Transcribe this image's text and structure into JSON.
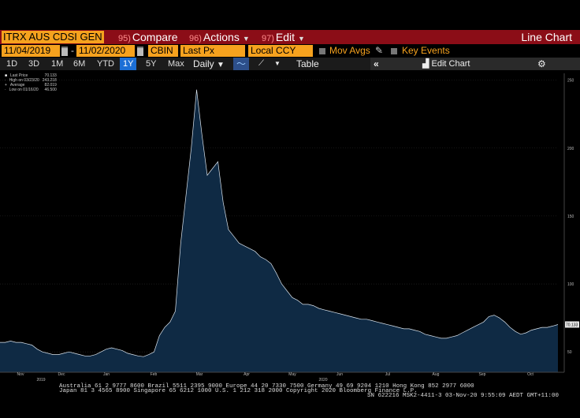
{
  "toolbar": {
    "ticker": "ITRX AUS CDSI GEN",
    "compare": {
      "num": "95)",
      "label": "Compare"
    },
    "actions": {
      "num": "96)",
      "label": "Actions"
    },
    "edit": {
      "num": "97)",
      "label": "Edit"
    },
    "chart_type": "Line Chart"
  },
  "range_row": {
    "start_date": "11/04/2019",
    "end_date": "11/02/2020",
    "source": "CBIN",
    "field": "Last Px",
    "currency": "Local CCY",
    "mov_avgs": "Mov Avgs",
    "key_events": "Key Events"
  },
  "period_row": {
    "periods": [
      "1D",
      "3D",
      "1M",
      "6M",
      "YTD",
      "1Y",
      "5Y",
      "Max"
    ],
    "active_period": "1Y",
    "frequency": "Daily",
    "table": "Table",
    "edit_chart": "Edit Chart"
  },
  "legend": [
    {
      "label": "Last Price",
      "value": "70.133"
    },
    {
      "label": "High on 03/23/20",
      "value": "243.218"
    },
    {
      "label": "Average",
      "value": "82.019"
    },
    {
      "label": "Low on 01/16/20",
      "value": "46.500"
    }
  ],
  "last_value_tag": "70.133",
  "chart_data": {
    "type": "area",
    "title": "",
    "xlabel": "",
    "ylabel": "",
    "ylim": [
      35,
      255
    ],
    "y_ticks": [
      50,
      100,
      150,
      200,
      250
    ],
    "x_month_labels": [
      "Nov",
      "Dec",
      "Jan",
      "Feb",
      "Mar",
      "Apr",
      "May",
      "Jun",
      "Jul",
      "Aug",
      "Sep",
      "Oct"
    ],
    "x_year_labels": [
      "2019",
      "2020"
    ],
    "series": [
      {
        "values": [
          57,
          57,
          58,
          57,
          57,
          56,
          55,
          52,
          50,
          49,
          48,
          48,
          49,
          50,
          49,
          48,
          47,
          47,
          48,
          50,
          52,
          53,
          52,
          51,
          49,
          48,
          47,
          46.5,
          48,
          50,
          62,
          68,
          72,
          80,
          130,
          165,
          200,
          243,
          210,
          180,
          185,
          190,
          160,
          140,
          135,
          130,
          128,
          126,
          124,
          120,
          118,
          115,
          108,
          100,
          95,
          90,
          88,
          85,
          85,
          84,
          82,
          81,
          80,
          79,
          78,
          77,
          76,
          75,
          74,
          74,
          73,
          72,
          71,
          70,
          69,
          68,
          67,
          67,
          66,
          65,
          63,
          62,
          61,
          60,
          60,
          61,
          62,
          64,
          66,
          68,
          70,
          72,
          76,
          77,
          75,
          72,
          68,
          65,
          63,
          64,
          66,
          67,
          68,
          68,
          69,
          70.133
        ],
        "color": "#0f2a44",
        "line_color": "#dce6f0"
      }
    ]
  },
  "footer": {
    "line1": "Australia 61 2 9777 8600  Brazil 5511 2395 9000  Europe 44 20 7330 7500  Germany 49 69 9204 1210  Hong Kong 852 2977 6000",
    "line2": "Japan 81 3 4565 8900        Singapore 65 6212 1000        U.S. 1 212 318 2000        Copyright 2020 Bloomberg Finance L.P.",
    "line3": "SN 622216 MSK2-4411-3 03-Nov-20  9:55:09 AEDT GMT+11:00"
  }
}
